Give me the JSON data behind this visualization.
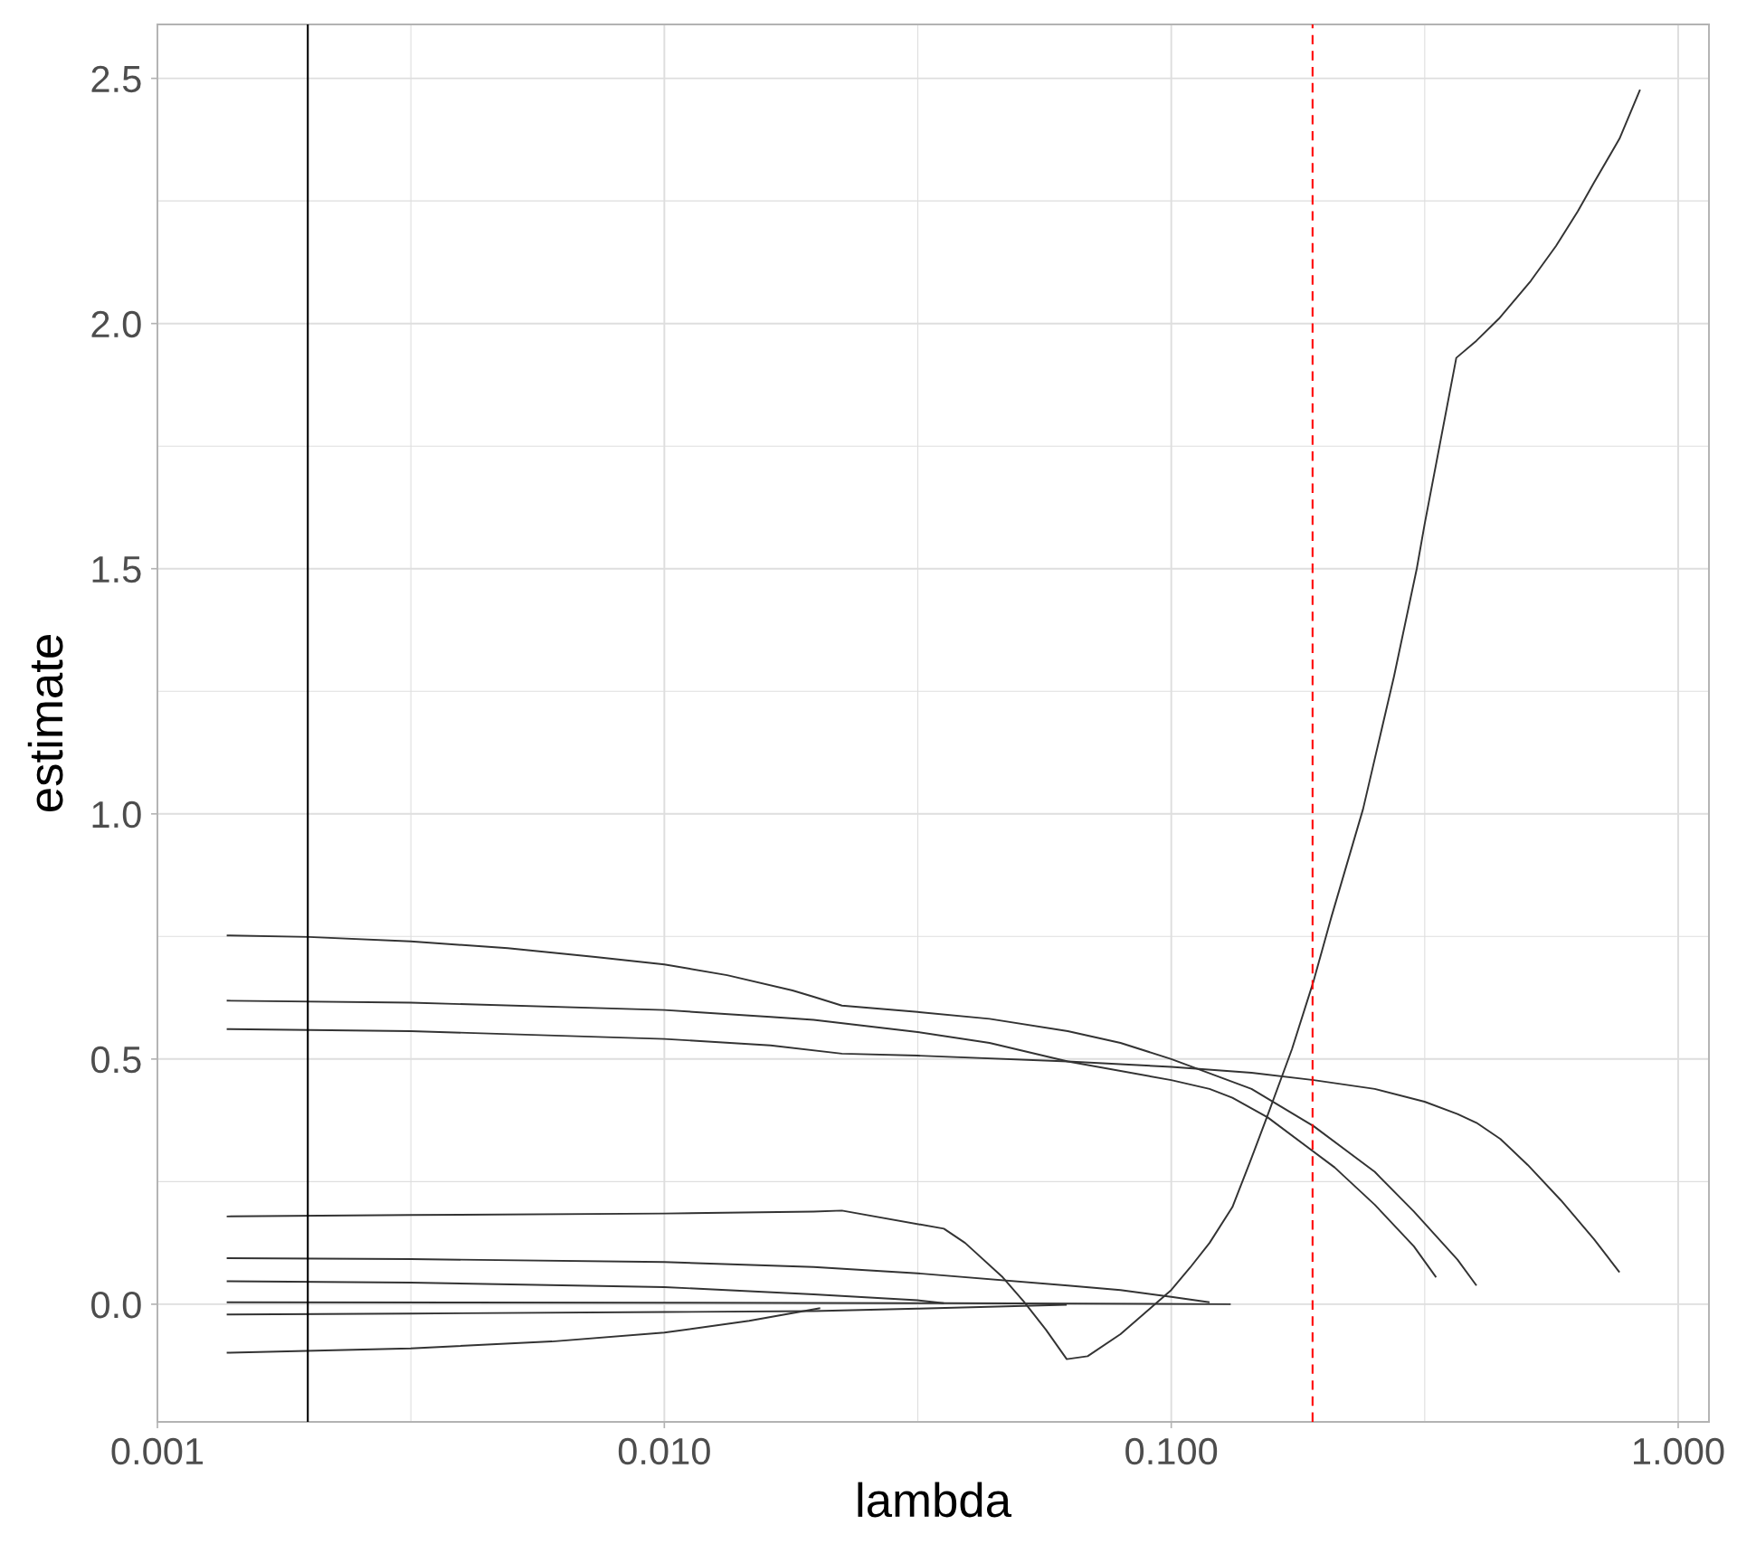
{
  "chart_data": {
    "type": "line",
    "xlabel": "lambda",
    "ylabel": "estimate",
    "log": "x",
    "grid": true,
    "line_style": "solid",
    "xlim": [
      0.001,
      1.15
    ],
    "ylim": [
      -0.24,
      2.61
    ],
    "xticks": [
      {
        "value": 0.001,
        "label": "0.001"
      },
      {
        "value": 0.01,
        "label": "0.010"
      },
      {
        "value": 0.1,
        "label": "0.100"
      },
      {
        "value": 1,
        "label": "1.000"
      }
    ],
    "yticks": [
      {
        "value": 0,
        "label": "0.0"
      },
      {
        "value": 0.5,
        "label": "0.5"
      },
      {
        "value": 1,
        "label": "1.0"
      },
      {
        "value": 1.5,
        "label": "1.5"
      },
      {
        "value": 2,
        "label": "2.0"
      },
      {
        "value": 2.5,
        "label": "2.5"
      }
    ],
    "series": [
      {
        "color": "#333333",
        "x": [
          0.00137,
          0.00199,
          0.00316,
          0.00491,
          0.00731,
          0.01,
          0.0133,
          0.0179,
          0.0197,
          0.0224,
          0.0316,
          0.0438,
          0.0625,
          0.0794,
          0.1,
          0.144,
          0.191,
          0.252,
          0.301,
          0.367,
          0.4
        ],
        "values": [
          0.752,
          0.749,
          0.74,
          0.726,
          0.708,
          0.693,
          0.671,
          0.64,
          0.627,
          0.609,
          0.596,
          0.582,
          0.557,
          0.533,
          0.5,
          0.439,
          0.363,
          0.27,
          0.189,
          0.091,
          0.038
        ]
      },
      {
        "color": "#333333",
        "x": [
          0.00137,
          0.00316,
          0.01,
          0.0162,
          0.0197,
          0.0316,
          0.0438,
          0.0625,
          0.1,
          0.119,
          0.132,
          0.155,
          0.21,
          0.252,
          0.301,
          0.333
        ],
        "values": [
          0.619,
          0.615,
          0.6,
          0.586,
          0.58,
          0.555,
          0.533,
          0.495,
          0.457,
          0.439,
          0.421,
          0.381,
          0.279,
          0.203,
          0.118,
          0.055
        ]
      },
      {
        "color": "#333333",
        "x": [
          0.00137,
          0.00316,
          0.01,
          0.0162,
          0.0224,
          0.0316,
          0.0625,
          0.1,
          0.144,
          0.191,
          0.252,
          0.316,
          0.367,
          0.4,
          0.446,
          0.505,
          0.587,
          0.682,
          0.766
        ],
        "values": [
          0.561,
          0.557,
          0.541,
          0.528,
          0.511,
          0.507,
          0.495,
          0.484,
          0.472,
          0.457,
          0.439,
          0.413,
          0.388,
          0.37,
          0.337,
          0.284,
          0.212,
          0.133,
          0.065
        ]
      },
      {
        "color": "#333333",
        "x": [
          0.00137,
          0.00316,
          0.01,
          0.0197,
          0.0224,
          0.0356,
          0.0392,
          0.0465,
          0.0513,
          0.0566,
          0.0622,
          0.0684,
          0.0794,
          0.0912,
          0.1,
          0.109,
          0.119,
          0.132,
          0.143,
          0.155,
          0.173,
          0.191,
          0.207,
          0.239,
          0.275,
          0.305,
          0.316,
          0.365,
          0.4,
          0.443,
          0.512,
          0.574,
          0.634,
          0.682,
          0.766,
          0.841
        ],
        "values": [
          0.179,
          0.182,
          0.185,
          0.189,
          0.191,
          0.154,
          0.125,
          0.055,
          0.004,
          -0.052,
          -0.112,
          -0.106,
          -0.061,
          -0.007,
          0.029,
          0.075,
          0.125,
          0.198,
          0.29,
          0.386,
          0.52,
          0.66,
          0.79,
          1.01,
          1.28,
          1.5,
          1.59,
          1.93,
          1.965,
          2.01,
          2.087,
          2.158,
          2.229,
          2.287,
          2.377,
          2.477
        ]
      },
      {
        "color": "#333333",
        "x": [
          0.00137,
          0.00316,
          0.01,
          0.0197,
          0.0316,
          0.0625,
          0.0794,
          0.1,
          0.119
        ],
        "values": [
          0.094,
          0.092,
          0.086,
          0.076,
          0.063,
          0.038,
          0.029,
          0.015,
          0.004
        ]
      },
      {
        "color": "#333333",
        "x": [
          0.00137,
          0.00316,
          0.01,
          0.0197,
          0.0316,
          0.0356
        ],
        "values": [
          0.047,
          0.044,
          0.035,
          0.02,
          0.008,
          0.002
        ]
      },
      {
        "color": "#333333",
        "x": [
          0.00137,
          0.01,
          0.0356,
          0.131
        ],
        "values": [
          0.004,
          0.003,
          0.002,
          0.0
        ]
      },
      {
        "color": "#333333",
        "x": [
          0.00137,
          0.00316,
          0.01,
          0.0197,
          0.0316,
          0.0622
        ],
        "values": [
          -0.021,
          -0.019,
          -0.016,
          -0.014,
          -0.009,
          -0.001
        ]
      },
      {
        "color": "#333333",
        "x": [
          0.00137,
          0.00316,
          0.006,
          0.01,
          0.0147,
          0.0203
        ],
        "values": [
          -0.099,
          -0.09,
          -0.076,
          -0.058,
          -0.034,
          -0.008
        ]
      }
    ],
    "ref_lines": [
      {
        "axis": "x",
        "value": 0.00198,
        "color": "#000000",
        "line_style": "solid"
      },
      {
        "axis": "x",
        "value": 0.19,
        "color": "#ff0000",
        "line_style": "dashed"
      }
    ]
  }
}
